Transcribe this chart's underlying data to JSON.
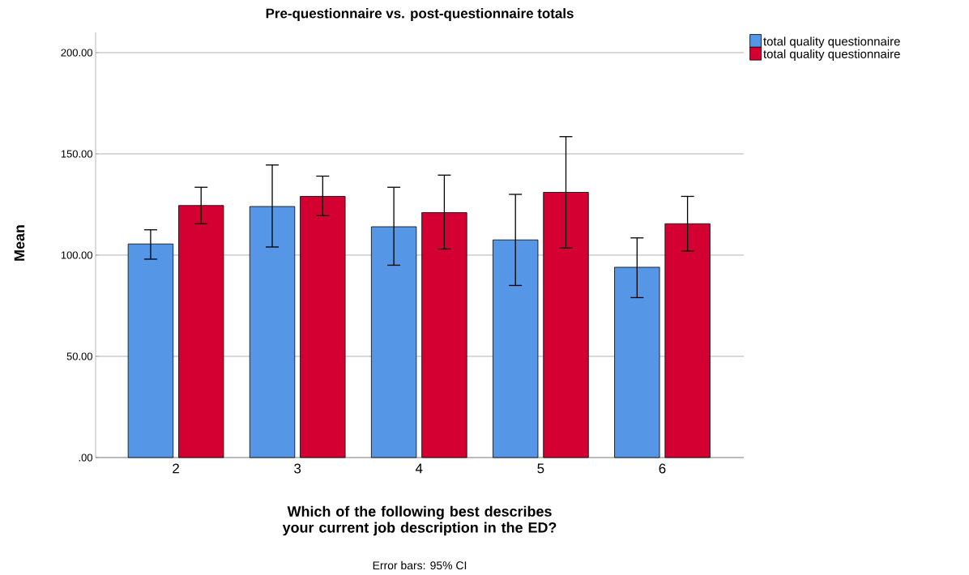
{
  "chart_data": {
    "type": "bar",
    "title": "Pre-questionnaire vs. post-questionnaire totals",
    "xlabel": "Which of the following best describes your current job description in the ED?",
    "ylabel": "Mean",
    "annotations": [
      "Error bars: 95% CI"
    ],
    "categories": [
      "2",
      "3",
      "4",
      "5",
      "6"
    ],
    "series": [
      {
        "name": "total quality questionnaire",
        "color": "#5596e6",
        "values": [
          105.5,
          124,
          114,
          107.5,
          94
        ],
        "errors": [
          [
            98,
            112.5
          ],
          [
            104,
            144.5
          ],
          [
            95,
            133.5
          ],
          [
            85,
            130
          ],
          [
            79,
            108.5
          ]
        ]
      },
      {
        "name": "total quality questionnaire",
        "color": "#d50032",
        "values": [
          124.5,
          129,
          121,
          131,
          115.5
        ],
        "errors": [
          [
            115.5,
            133.5
          ],
          [
            119.5,
            139
          ],
          [
            103,
            139.5
          ],
          [
            103.5,
            158.5
          ],
          [
            102,
            129
          ]
        ]
      }
    ],
    "ylim": [
      0,
      210
    ],
    "yticks": [
      {
        "value": 0,
        "label": ".00"
      },
      {
        "value": 50,
        "label": "50.00"
      },
      {
        "value": 100,
        "label": "100.00"
      },
      {
        "value": 150,
        "label": "150.00"
      },
      {
        "value": 200,
        "label": "200.00"
      }
    ],
    "grid": "y",
    "legend": "top right"
  }
}
